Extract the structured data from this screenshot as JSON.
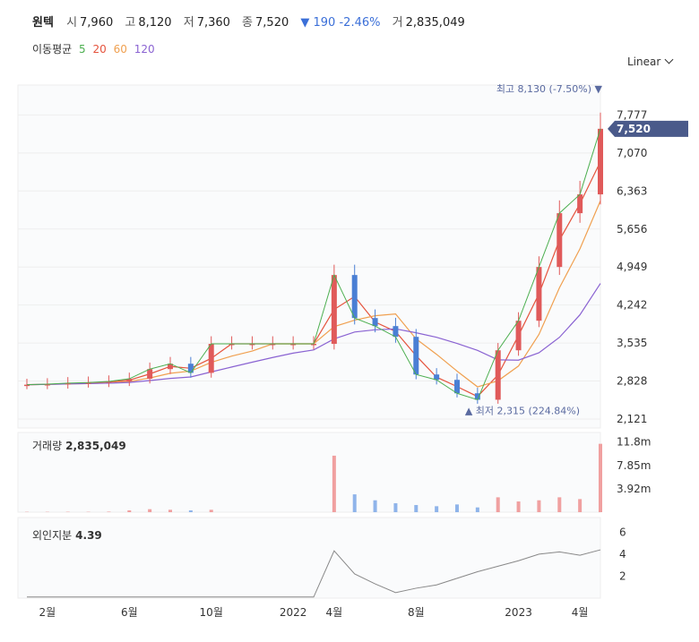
{
  "header": {
    "stock_name": "원텍",
    "open_label": "시",
    "open_value": "7,960",
    "high_label": "고",
    "high_value": "8,120",
    "low_label": "저",
    "low_value": "7,360",
    "close_label": "종",
    "close_value": "7,520",
    "change_arrow": "▼",
    "change_value": "190",
    "change_pct": "-2.46%",
    "volume_label": "거",
    "volume_value": "2,835,049"
  },
  "moving_averages": {
    "label": "이동평균",
    "periods": [
      {
        "value": "5",
        "color": "#4caf50"
      },
      {
        "value": "20",
        "color": "#e5533d"
      },
      {
        "value": "60",
        "color": "#f0a050"
      },
      {
        "value": "120",
        "color": "#8a63d2"
      }
    ]
  },
  "scale_selector": {
    "label": "Linear"
  },
  "price_panel": {
    "y_ticks": [
      "7,777",
      "7,070",
      "6,363",
      "5,656",
      "4,949",
      "4,242",
      "3,535",
      "2,828",
      "2,121"
    ],
    "current_price_label": "7,520",
    "max_annotation": {
      "label": "최고",
      "value": "8,130",
      "pct": "(-7.50%)"
    },
    "min_annotation": {
      "label": "최저",
      "value": "2,315",
      "pct": "(224.84%)"
    }
  },
  "volume_panel": {
    "label": "거래량",
    "value": "2,835,049",
    "y_ticks": [
      "11.8m",
      "7.85m",
      "3.92m"
    ]
  },
  "foreign_panel": {
    "label": "외인지분",
    "value": "4.39",
    "y_ticks": [
      "6",
      "4",
      "2"
    ]
  },
  "x_axis": {
    "ticks": [
      "2월",
      "6월",
      "10월",
      "2022",
      "4월",
      "8월",
      "2023",
      "4월"
    ]
  },
  "colors": {
    "up": "#e05a5a",
    "down": "#4a7fd4",
    "current_badge": "#4a5a8a",
    "grid": "#eeeeee"
  },
  "chart_data": {
    "type": "line",
    "x": [
      "2021-01",
      "2021-02",
      "2021-03",
      "2021-04",
      "2021-05",
      "2021-06",
      "2021-07",
      "2021-08",
      "2021-09",
      "2021-10",
      "2021-11",
      "2021-12",
      "2022-01",
      "2022-02",
      "2022-03",
      "2022-04",
      "2022-05",
      "2022-06",
      "2022-07",
      "2022-08",
      "2022-09",
      "2022-10",
      "2022-11",
      "2022-12",
      "2023-01",
      "2023-02",
      "2023-03",
      "2023-04",
      "2023-05"
    ],
    "series": [
      {
        "name": "종",
        "values": [
          2760,
          2770,
          2790,
          2800,
          2820,
          2870,
          3050,
          3150,
          2980,
          3520,
          3520,
          3520,
          3520,
          3520,
          3520,
          4800,
          4000,
          3850,
          3650,
          2950,
          2850,
          2600,
          2480,
          3400,
          3950,
          4950,
          5950,
          6300,
          7520
        ]
      }
    ],
    "volume_values_m": [
      0.05,
      0.05,
      0.06,
      0.05,
      0.08,
      0.3,
      0.5,
      0.4,
      0.3,
      0.4,
      0.0,
      0.0,
      0.0,
      0.0,
      0.0,
      9.5,
      3.0,
      2.0,
      1.5,
      1.2,
      1.0,
      1.3,
      0.8,
      2.5,
      1.8,
      2.0,
      2.5,
      2.2,
      11.5
    ],
    "foreign_ownership_pct": [
      0.1,
      0.1,
      0.1,
      0.1,
      0.1,
      0.1,
      0.1,
      0.1,
      0.1,
      0.1,
      0.1,
      0.1,
      0.1,
      0.1,
      0.1,
      4.3,
      2.2,
      1.3,
      0.5,
      0.9,
      1.2,
      1.8,
      2.4,
      2.9,
      3.4,
      4.0,
      4.2,
      3.9,
      4.39
    ],
    "ylim": [
      2121,
      8300
    ],
    "volume_ylim_m": [
      0,
      12.5
    ],
    "foreign_ylim": [
      0,
      7
    ],
    "grid": true
  }
}
